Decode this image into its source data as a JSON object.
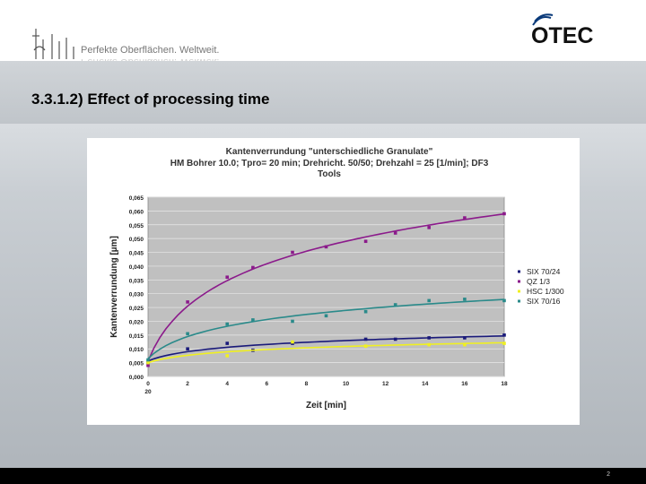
{
  "header": {
    "tagline": "Perfekte Oberflächen. Weltweit.",
    "brand": "OTEC"
  },
  "slide": {
    "title": "3.3.1.2)  Effect of processing time",
    "page_number": "2"
  },
  "colors": {
    "plot_bg": "#c0c0c0",
    "series": [
      "#1a1a7a",
      "#8b1a8b",
      "#f0f020",
      "#2a8a8a"
    ]
  },
  "chart_data": {
    "type": "scatter",
    "title_lines": [
      "Kantenverrundung \"unterschiedliche Granulate\"",
      "HM Bohrer 10.0; Tpro= 20 min; Drehricht. 50/50; Drehzahl = 25 [1/min]; DF3",
      "Tools"
    ],
    "xlabel": "Zeit [min]",
    "ylabel": "Kantenverrundung [µm]",
    "xlim": [
      0,
      18
    ],
    "ylim": [
      0,
      0.065
    ],
    "x_ticks": [
      "0",
      "2",
      "4",
      "6",
      "8",
      "10",
      "12",
      "14",
      "16",
      "18"
    ],
    "x_tick_extra": "20",
    "y_ticks": [
      "0,000",
      "0,005",
      "0,010",
      "0,015",
      "0,020",
      "0,025",
      "0,030",
      "0,035",
      "0,040",
      "0,045",
      "0,050",
      "0,055",
      "0,060",
      "0,065"
    ],
    "grid": true,
    "legend_position": "right",
    "series": [
      {
        "name": "SIX 70/24",
        "x": [
          0,
          2,
          4,
          5.3,
          7.3,
          11,
          12.5,
          14.2,
          16,
          18
        ],
        "y": [
          0.005,
          0.01,
          0.012,
          0.0095,
          0.012,
          0.0135,
          0.0135,
          0.014,
          0.014,
          0.015
        ]
      },
      {
        "name": "QZ 1/3",
        "x": [
          0,
          2,
          4,
          5.3,
          7.3,
          9,
          11,
          12.5,
          14.2,
          16,
          18
        ],
        "y": [
          0.004,
          0.027,
          0.036,
          0.0395,
          0.045,
          0.047,
          0.049,
          0.052,
          0.054,
          0.0575,
          0.059
        ]
      },
      {
        "name": "HSC 1/300",
        "x": [
          0,
          4,
          7.3,
          11,
          14.2,
          16,
          18
        ],
        "y": [
          0.005,
          0.0075,
          0.0125,
          0.011,
          0.0115,
          0.0115,
          0.012
        ]
      },
      {
        "name": "SIX 70/16",
        "x": [
          0,
          2,
          4,
          5.3,
          7.3,
          9,
          11,
          12.5,
          14.2,
          16,
          18
        ],
        "y": [
          0.006,
          0.0155,
          0.019,
          0.0205,
          0.02,
          0.022,
          0.0235,
          0.026,
          0.0275,
          0.028,
          0.0275
        ]
      }
    ]
  }
}
